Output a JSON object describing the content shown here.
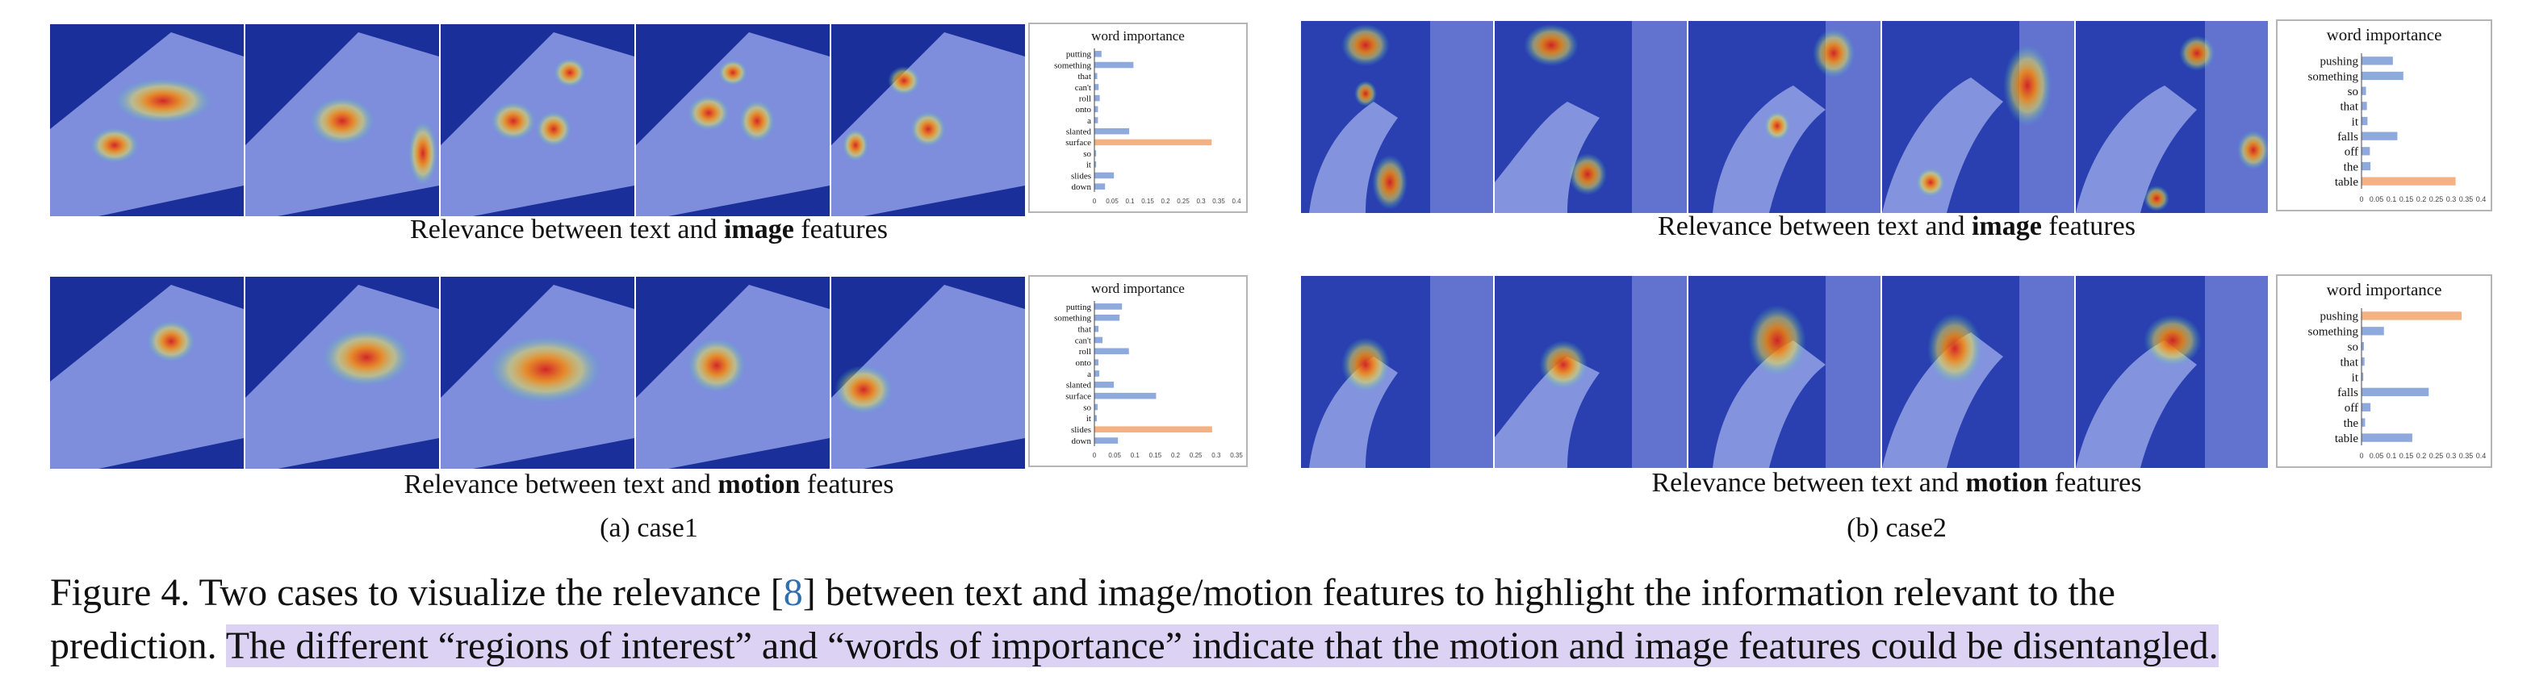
{
  "panels": [
    {
      "id": "case1",
      "subcaption": "(a) case1",
      "rows": [
        {
          "caption_pre": "Relevance between text and",
          "caption_bold": "image",
          "caption_post": "features",
          "chart_data": {
            "type": "bar",
            "title": "word importance",
            "orientation": "horizontal",
            "categories": [
              "putting",
              "something",
              "that",
              "can't",
              "roll",
              "onto",
              "a",
              "slanted",
              "surface",
              "so",
              "it",
              "slides",
              "down"
            ],
            "values": [
              0.02,
              0.11,
              0.008,
              0.012,
              0.015,
              0.01,
              0.01,
              0.098,
              0.33,
              0.005,
              0.005,
              0.055,
              0.03
            ],
            "highlight_index": 8,
            "ticks": [
              "0",
              "0.05",
              "0.1",
              "0.15",
              "0.2",
              "0.25",
              "0.3",
              "0.35",
              "0.4"
            ],
            "xlim": [
              0,
              0.4
            ]
          }
        },
        {
          "caption_pre": "Relevance between text and",
          "caption_bold": "motion",
          "caption_post": "features",
          "chart_data": {
            "type": "bar",
            "title": "word importance",
            "orientation": "horizontal",
            "categories": [
              "putting",
              "something",
              "that",
              "can't",
              "roll",
              "onto",
              "a",
              "slanted",
              "surface",
              "so",
              "it",
              "slides",
              "down"
            ],
            "values": [
              0.068,
              0.062,
              0.01,
              0.02,
              0.085,
              0.01,
              0.012,
              0.048,
              0.152,
              0.008,
              0.006,
              0.29,
              0.058
            ],
            "highlight_index": 11,
            "ticks": [
              "0",
              "0.05",
              "0.1",
              "0.15",
              "0.2",
              "0.25",
              "0.3",
              "0.35"
            ],
            "xlim": [
              0,
              0.35
            ]
          }
        }
      ]
    },
    {
      "id": "case2",
      "subcaption": "(b) case2",
      "rows": [
        {
          "caption_pre": "Relevance between text and",
          "caption_bold": "image",
          "caption_post": "features",
          "chart_data": {
            "type": "bar",
            "title": "word importance",
            "orientation": "horizontal",
            "categories": [
              "pushing",
              "something",
              "so",
              "that",
              "it",
              "falls",
              "off",
              "the",
              "table"
            ],
            "values": [
              0.105,
              0.14,
              0.015,
              0.018,
              0.02,
              0.12,
              0.028,
              0.03,
              0.315
            ],
            "highlight_index": 8,
            "ticks": [
              "0",
              "0.05",
              "0.1",
              "0.15",
              "0.2",
              "0.25",
              "0.3",
              "0.35",
              "0.4"
            ],
            "xlim": [
              0,
              0.4
            ]
          }
        },
        {
          "caption_pre": "Relevance between text and",
          "caption_bold": "motion",
          "caption_post": "features",
          "chart_data": {
            "type": "bar",
            "title": "word importance",
            "orientation": "horizontal",
            "categories": [
              "pushing",
              "something",
              "so",
              "that",
              "it",
              "falls",
              "off",
              "the",
              "table"
            ],
            "values": [
              0.335,
              0.075,
              0.008,
              0.01,
              0.006,
              0.225,
              0.03,
              0.012,
              0.17
            ],
            "highlight_index": 0,
            "ticks": [
              "0",
              "0.05",
              "0.1",
              "0.15",
              "0.2",
              "0.25",
              "0.3",
              "0.35",
              "0.4"
            ],
            "xlim": [
              0,
              0.4
            ]
          }
        }
      ]
    }
  ],
  "figure_caption": {
    "line1_pre": "Figure 4.  Two cases to visualize the relevance [",
    "line1_ref": "8",
    "line1_post": "] between text and image/motion features to highlight the information relevant to the",
    "line2_plain": "prediction. ",
    "line2_highlight": "The different “regions of interest” and “words of importance” indicate that the motion and image features could be disentangled."
  },
  "colors": {
    "bar_default": "#8ea9dc",
    "bar_highlight": "#f4b183",
    "caption_highlight": "#dcd3f4",
    "citation": "#2f6fb0"
  }
}
